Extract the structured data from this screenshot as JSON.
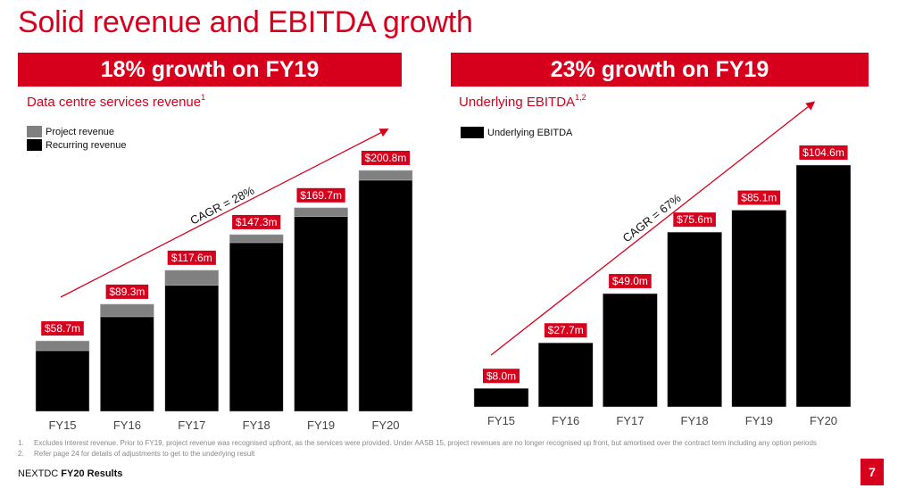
{
  "slide": {
    "title": "Solid revenue and EBITDA growth",
    "footer_brand": "NEXTDC",
    "footer_title": "FY20 Results",
    "page_number": "7",
    "accent_color": "#d6001c",
    "footnotes": [
      {
        "num": "1.",
        "text": "Excludes interest revenue. Prior to FY19, project revenue was recognised upfront, as the services were provided. Under AASB 15, project revenues are no longer recognised up front, but amortised over the contract term including any option periods"
      },
      {
        "num": "2.",
        "text": "Refer page 24 for details of adjustments to get to the underlying result"
      }
    ]
  },
  "left_panel": {
    "banner": "18% growth on FY19",
    "subtitle": "Data centre services revenue",
    "subtitle_sup": "1",
    "legend": [
      {
        "label": "Project revenue",
        "color": "#808080"
      },
      {
        "label": "Recurring revenue",
        "color": "#000000"
      }
    ],
    "cagr_label": "CAGR = 28%"
  },
  "right_panel": {
    "banner": "23% growth on FY19",
    "subtitle": "Underlying EBITDA",
    "subtitle_sup": "1,2",
    "legend": [
      {
        "label": "Underlying EBITDA",
        "color": "#000000"
      }
    ],
    "cagr_label": "CAGR = 67%"
  },
  "chart_data": [
    {
      "type": "bar",
      "stacked": true,
      "title": "Data centre services revenue",
      "xlabel": "",
      "ylabel": "",
      "unit": "$m",
      "categories": [
        "FY15",
        "FY16",
        "FY17",
        "FY18",
        "FY19",
        "FY20"
      ],
      "totals": [
        58.7,
        89.3,
        117.6,
        147.3,
        169.7,
        200.8
      ],
      "data_labels": [
        "$58.7m",
        "$89.3m",
        "$117.6m",
        "$147.3m",
        "$169.7m",
        "$200.8m"
      ],
      "series": [
        {
          "name": "Recurring revenue",
          "color": "#000000",
          "values": [
            50.6,
            78.9,
            105.0,
            140.6,
            162.3,
            192.7
          ]
        },
        {
          "name": "Project revenue",
          "color": "#808080",
          "values": [
            8.1,
            10.4,
            12.6,
            6.7,
            7.4,
            8.1
          ]
        }
      ],
      "annotation": "CAGR = 28%",
      "ylim": [
        0,
        200.8
      ],
      "grid": false,
      "legend_position": "top-left"
    },
    {
      "type": "bar",
      "title": "Underlying EBITDA",
      "xlabel": "",
      "ylabel": "",
      "unit": "$m",
      "categories": [
        "FY15",
        "FY16",
        "FY17",
        "FY18",
        "FY19",
        "FY20"
      ],
      "values": [
        8.0,
        27.7,
        49.0,
        75.6,
        85.1,
        104.6
      ],
      "data_labels": [
        "$8.0m",
        "$27.7m",
        "$49.0m",
        "$75.6m",
        "$85.1m",
        "$104.6m"
      ],
      "series": [
        {
          "name": "Underlying EBITDA",
          "color": "#000000",
          "values": [
            8.0,
            27.7,
            49.0,
            75.6,
            85.1,
            104.6
          ]
        }
      ],
      "annotation": "CAGR = 67%",
      "ylim": [
        0,
        104.6
      ],
      "grid": false,
      "legend_position": "top-left"
    }
  ]
}
